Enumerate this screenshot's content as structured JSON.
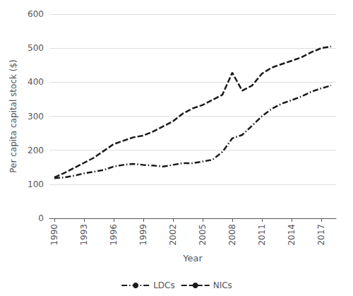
{
  "chart_data": {
    "type": "line",
    "x": [
      1990,
      1991,
      1992,
      1993,
      1994,
      1995,
      1996,
      1997,
      1998,
      1999,
      2000,
      2001,
      2002,
      2003,
      2004,
      2005,
      2006,
      2007,
      2008,
      2009,
      2010,
      2011,
      2012,
      2013,
      2014,
      2015,
      2016,
      2017,
      2018
    ],
    "series": [
      {
        "name": "NICs",
        "color": "#1a1a1a",
        "line_style": "dashed",
        "values": [
          120,
          133,
          148,
          163,
          178,
          198,
          218,
          228,
          238,
          243,
          255,
          270,
          285,
          308,
          323,
          333,
          348,
          363,
          428,
          375,
          390,
          425,
          443,
          453,
          463,
          473,
          488,
          500,
          505
        ]
      },
      {
        "name": "LDCs",
        "color": "#1a1a1a",
        "line_style": "dashdot",
        "values": [
          118,
          120,
          125,
          132,
          137,
          142,
          152,
          157,
          160,
          157,
          155,
          152,
          157,
          162,
          162,
          167,
          172,
          195,
          235,
          245,
          272,
          300,
          322,
          337,
          347,
          358,
          372,
          382,
          390
        ]
      }
    ],
    "xlabel": "Year",
    "ylabel": "Per capita capital stock ($)",
    "xlim": [
      1989.5,
      2018.5
    ],
    "xticks": [
      1990,
      1993,
      1996,
      1999,
      2002,
      2005,
      2008,
      2011,
      2014,
      2017
    ],
    "ylim": [
      0,
      600
    ],
    "yticks": [
      0,
      100,
      200,
      300,
      400,
      500,
      600
    ],
    "grid": "y",
    "legend": "bottom"
  }
}
